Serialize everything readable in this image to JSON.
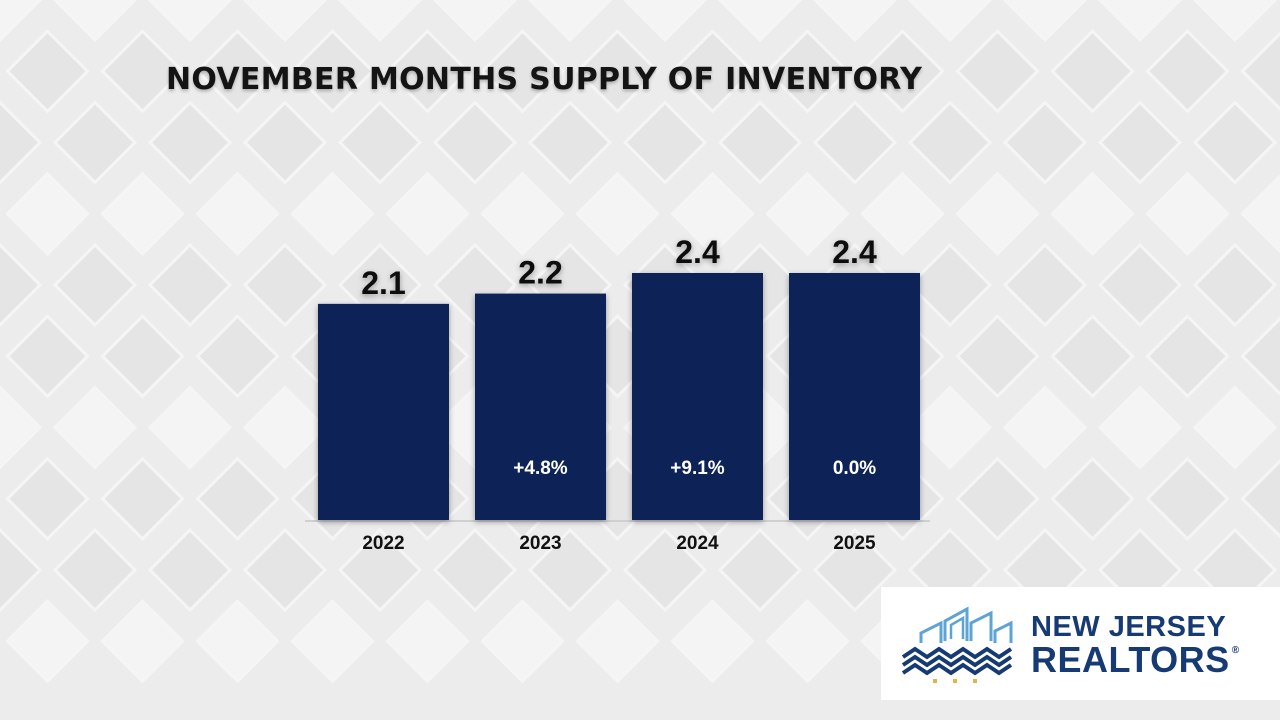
{
  "title": "NOVEMBER MONTHS SUPPLY OF INVENTORY",
  "chart_data": {
    "type": "bar",
    "title": "NOVEMBER MONTHS SUPPLY OF INVENTORY",
    "categories": [
      "2022",
      "2023",
      "2024",
      "2025"
    ],
    "values": [
      2.1,
      2.2,
      2.4,
      2.4
    ],
    "value_labels": [
      "2.1",
      "2.2",
      "2.4",
      "2.4"
    ],
    "change_labels": [
      "",
      "+4.8%",
      "+9.1%",
      "0.0%"
    ],
    "ylim": [
      0,
      2.4
    ],
    "xlabel": "",
    "ylabel": "",
    "grid": false,
    "bar_color": "#0e2456",
    "change_text_color": "#ffffff"
  },
  "logo": {
    "line1": "NEW JERSEY",
    "line2": "REALTORS",
    "registered": "®",
    "brand_color": "#163a73",
    "accent_color": "#5ea3d6"
  }
}
